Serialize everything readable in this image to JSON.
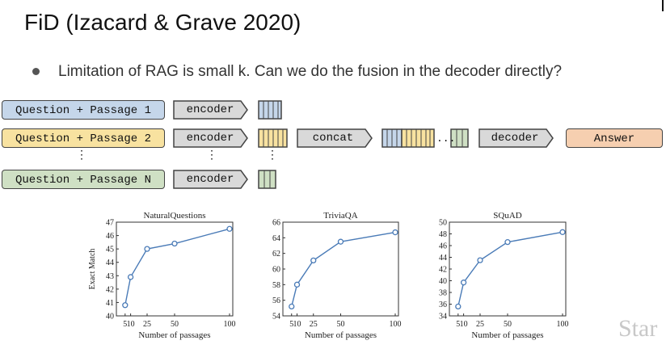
{
  "slide": {
    "title": "FiD (Izacard & Grave 2020)",
    "bullet": "Limitation of RAG is small k. Can we do the fusion in the decoder directly?",
    "watermark": "Star"
  },
  "diagram": {
    "rows": [
      {
        "input": "Question + Passage 1",
        "encoder": "encoder"
      },
      {
        "input": "Question + Passage 2",
        "encoder": "encoder"
      },
      {
        "input": "Question + Passage N",
        "encoder": "encoder"
      }
    ],
    "concat": "concat",
    "decoder": "decoder",
    "answer": "Answer",
    "ellipsis": "...",
    "vdots": "⋮",
    "colors": {
      "passage1": "#c5d6ea",
      "passage2": "#f8e2a0",
      "passageN": "#cfe0c4",
      "answer": "#f6cfb0",
      "encoder": "#d9d9d9"
    }
  },
  "chart_data": [
    {
      "type": "line",
      "title": "NaturalQuestions",
      "xlabel": "Number of passages",
      "ylabel": "Exact Match",
      "x": [
        5,
        10,
        25,
        50,
        100
      ],
      "x_ticks": [
        "5",
        "10",
        "25",
        "50",
        "100"
      ],
      "values": [
        40.8,
        42.9,
        45.0,
        45.4,
        46.5
      ],
      "ylim": [
        40,
        47
      ],
      "y_ticks": [
        40,
        41,
        42,
        43,
        44,
        45,
        46,
        47
      ]
    },
    {
      "type": "line",
      "title": "TriviaQA",
      "xlabel": "Number of passages",
      "ylabel": "",
      "x": [
        5,
        10,
        25,
        50,
        100
      ],
      "x_ticks": [
        "5",
        "10",
        "25",
        "50",
        "100"
      ],
      "values": [
        55.2,
        58.0,
        61.1,
        63.5,
        64.7
      ],
      "ylim": [
        54,
        66
      ],
      "y_ticks": [
        54,
        56,
        58,
        60,
        62,
        64,
        66
      ]
    },
    {
      "type": "line",
      "title": "SQuAD",
      "xlabel": "Number of passages",
      "ylabel": "",
      "x": [
        5,
        10,
        25,
        50,
        100
      ],
      "x_ticks": [
        "5",
        "10",
        "25",
        "50",
        "100"
      ],
      "values": [
        35.6,
        39.7,
        43.5,
        46.6,
        48.3
      ],
      "ylim": [
        34,
        50
      ],
      "y_ticks": [
        34,
        36,
        38,
        40,
        42,
        44,
        46,
        48,
        50
      ]
    }
  ]
}
